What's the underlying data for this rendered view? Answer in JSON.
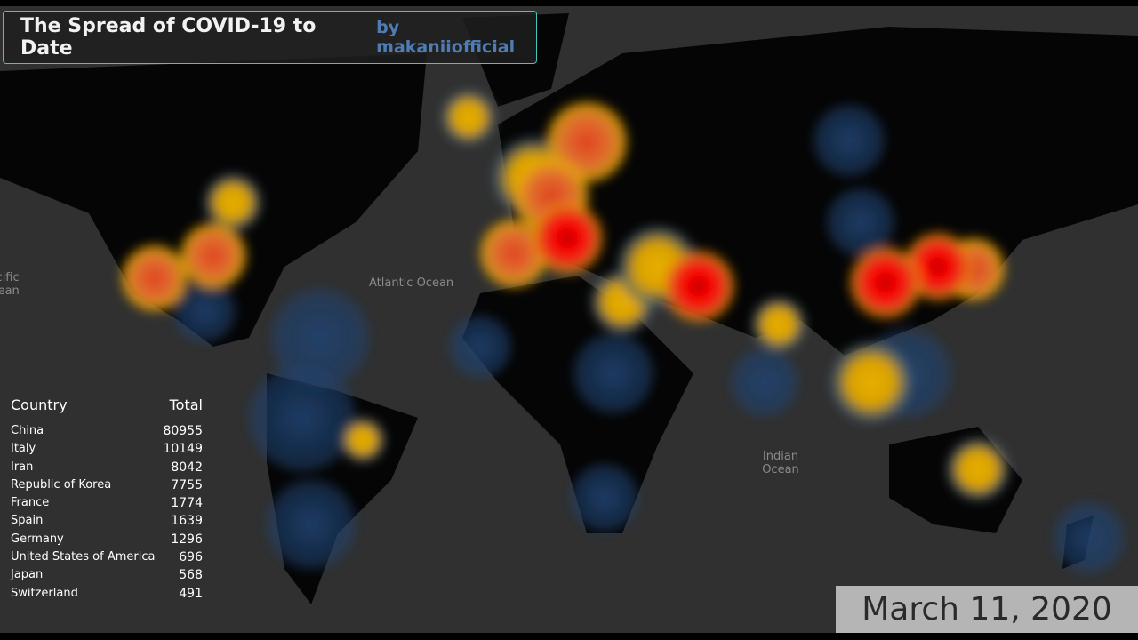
{
  "header": {
    "title": "The Spread of COVID-19 to Date",
    "byline": "by makaniiofficial"
  },
  "map": {
    "ocean_labels": [
      "Atlantic Ocean",
      "Indian Ocean",
      "Pacific Ocean"
    ]
  },
  "table": {
    "columns": [
      "Country",
      "Total"
    ],
    "rows": [
      [
        "China",
        80955
      ],
      [
        "Italy",
        10149
      ],
      [
        "Iran",
        8042
      ],
      [
        "Republic of Korea",
        7755
      ],
      [
        "France",
        1774
      ],
      [
        "Spain",
        1639
      ],
      [
        "Germany",
        1296
      ],
      [
        "United States of America",
        696
      ],
      [
        "Japan",
        568
      ],
      [
        "Switzerland",
        491
      ]
    ]
  },
  "date": "March 11, 2020"
}
